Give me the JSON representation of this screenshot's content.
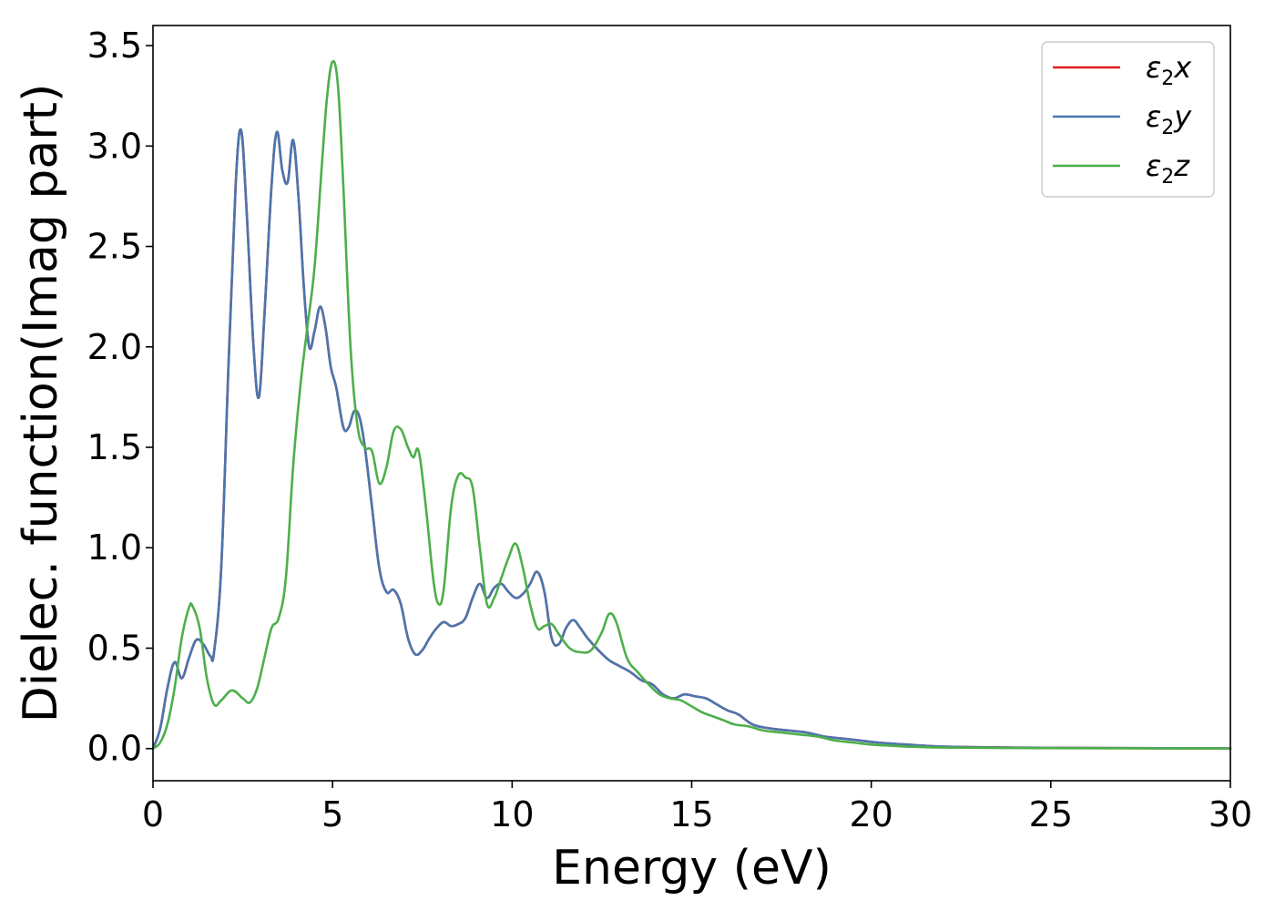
{
  "chart_data": {
    "type": "line",
    "xlabel": "Energy (eV)",
    "ylabel": "Dielec. function(Imag part)",
    "xlim": [
      0,
      30
    ],
    "ylim": [
      -0.16,
      3.6
    ],
    "x_ticks": [
      0,
      5,
      10,
      15,
      20,
      25,
      30
    ],
    "y_ticks": [
      0.0,
      0.5,
      1.0,
      1.5,
      2.0,
      2.5,
      3.0,
      3.5
    ],
    "x_tick_labels": [
      "0",
      "5",
      "10",
      "15",
      "20",
      "25",
      "30"
    ],
    "y_tick_labels": [
      "0.0",
      "0.5",
      "1.0",
      "1.5",
      "2.0",
      "2.5",
      "3.0",
      "3.5"
    ],
    "grid": false,
    "legend_position": "top-right",
    "series": [
      {
        "name": "ε₂x",
        "label_base": "ε",
        "label_sub": "2",
        "label_var": "x",
        "color": "#e41a1c",
        "x": [
          0,
          0.2,
          0.4,
          0.6,
          0.8,
          1.0,
          1.2,
          1.4,
          1.6,
          1.7,
          1.9,
          2.1,
          2.3,
          2.45,
          2.6,
          2.8,
          2.95,
          3.1,
          3.3,
          3.45,
          3.6,
          3.75,
          3.9,
          4.05,
          4.2,
          4.35,
          4.5,
          4.65,
          4.8,
          4.95,
          5.1,
          5.3,
          5.45,
          5.6,
          5.75,
          5.9,
          6.1,
          6.3,
          6.5,
          6.7,
          6.9,
          7.1,
          7.3,
          7.5,
          7.7,
          7.9,
          8.1,
          8.3,
          8.5,
          8.7,
          8.9,
          9.1,
          9.3,
          9.5,
          9.7,
          9.9,
          10.1,
          10.3,
          10.5,
          10.7,
          10.9,
          11.1,
          11.3,
          11.5,
          11.7,
          11.9,
          12.1,
          12.4,
          12.7,
          13.0,
          13.3,
          13.6,
          13.9,
          14.2,
          14.5,
          14.8,
          15.1,
          15.4,
          15.7,
          16.0,
          16.3,
          16.7,
          17.2,
          17.7,
          18.2,
          18.7,
          19.2,
          19.7,
          20.2,
          21.0,
          22.0,
          24.0,
          26.0,
          28.0,
          30.0
        ],
        "values": [
          0.0,
          0.1,
          0.3,
          0.43,
          0.35,
          0.45,
          0.54,
          0.52,
          0.46,
          0.48,
          0.9,
          1.9,
          2.8,
          3.08,
          2.7,
          2.0,
          1.75,
          2.15,
          2.8,
          3.07,
          2.88,
          2.82,
          3.03,
          2.75,
          2.3,
          2.0,
          2.08,
          2.2,
          2.1,
          1.9,
          1.8,
          1.6,
          1.6,
          1.68,
          1.65,
          1.5,
          1.2,
          0.9,
          0.78,
          0.79,
          0.72,
          0.55,
          0.47,
          0.49,
          0.55,
          0.6,
          0.63,
          0.61,
          0.62,
          0.65,
          0.75,
          0.82,
          0.75,
          0.8,
          0.82,
          0.78,
          0.75,
          0.77,
          0.82,
          0.88,
          0.78,
          0.55,
          0.52,
          0.6,
          0.64,
          0.6,
          0.55,
          0.49,
          0.44,
          0.41,
          0.38,
          0.34,
          0.32,
          0.27,
          0.25,
          0.27,
          0.26,
          0.25,
          0.22,
          0.19,
          0.17,
          0.12,
          0.1,
          0.09,
          0.08,
          0.06,
          0.05,
          0.04,
          0.03,
          0.02,
          0.01,
          0.005,
          0.003,
          0.002,
          0.001
        ]
      },
      {
        "name": "ε₂y",
        "label_base": "ε",
        "label_sub": "2",
        "label_var": "y",
        "color": "#4a76ae",
        "x": [
          0,
          0.2,
          0.4,
          0.6,
          0.8,
          1.0,
          1.2,
          1.4,
          1.6,
          1.7,
          1.9,
          2.1,
          2.3,
          2.45,
          2.6,
          2.8,
          2.95,
          3.1,
          3.3,
          3.45,
          3.6,
          3.75,
          3.9,
          4.05,
          4.2,
          4.35,
          4.5,
          4.65,
          4.8,
          4.95,
          5.1,
          5.3,
          5.45,
          5.6,
          5.75,
          5.9,
          6.1,
          6.3,
          6.5,
          6.7,
          6.9,
          7.1,
          7.3,
          7.5,
          7.7,
          7.9,
          8.1,
          8.3,
          8.5,
          8.7,
          8.9,
          9.1,
          9.3,
          9.5,
          9.7,
          9.9,
          10.1,
          10.3,
          10.5,
          10.7,
          10.9,
          11.1,
          11.3,
          11.5,
          11.7,
          11.9,
          12.1,
          12.4,
          12.7,
          13.0,
          13.3,
          13.6,
          13.9,
          14.2,
          14.5,
          14.8,
          15.1,
          15.4,
          15.7,
          16.0,
          16.3,
          16.7,
          17.2,
          17.7,
          18.2,
          18.7,
          19.2,
          19.7,
          20.2,
          21.0,
          22.0,
          24.0,
          26.0,
          28.0,
          30.0
        ],
        "values": [
          0.0,
          0.1,
          0.3,
          0.43,
          0.35,
          0.45,
          0.54,
          0.52,
          0.46,
          0.48,
          0.9,
          1.9,
          2.8,
          3.08,
          2.7,
          2.0,
          1.75,
          2.15,
          2.8,
          3.07,
          2.88,
          2.82,
          3.03,
          2.75,
          2.3,
          2.0,
          2.08,
          2.2,
          2.1,
          1.9,
          1.8,
          1.6,
          1.6,
          1.68,
          1.65,
          1.5,
          1.2,
          0.9,
          0.78,
          0.79,
          0.72,
          0.55,
          0.47,
          0.49,
          0.55,
          0.6,
          0.63,
          0.61,
          0.62,
          0.65,
          0.75,
          0.82,
          0.75,
          0.8,
          0.82,
          0.78,
          0.75,
          0.77,
          0.82,
          0.88,
          0.78,
          0.55,
          0.52,
          0.6,
          0.64,
          0.6,
          0.55,
          0.49,
          0.44,
          0.41,
          0.38,
          0.34,
          0.32,
          0.27,
          0.25,
          0.27,
          0.26,
          0.25,
          0.22,
          0.19,
          0.17,
          0.12,
          0.1,
          0.09,
          0.08,
          0.06,
          0.05,
          0.04,
          0.03,
          0.02,
          0.01,
          0.005,
          0.003,
          0.002,
          0.001
        ]
      },
      {
        "name": "ε₂z",
        "label_base": "ε",
        "label_sub": "2",
        "label_var": "z",
        "color": "#4daf4a",
        "x": [
          0,
          0.2,
          0.4,
          0.6,
          0.8,
          1.0,
          1.1,
          1.3,
          1.5,
          1.7,
          1.9,
          2.2,
          2.5,
          2.7,
          2.9,
          3.1,
          3.3,
          3.5,
          3.7,
          3.9,
          4.1,
          4.3,
          4.5,
          4.7,
          4.85,
          5.0,
          5.15,
          5.3,
          5.5,
          5.7,
          5.9,
          6.1,
          6.3,
          6.5,
          6.7,
          6.9,
          7.1,
          7.25,
          7.4,
          7.6,
          7.8,
          7.95,
          8.1,
          8.3,
          8.5,
          8.7,
          8.9,
          9.1,
          9.3,
          9.5,
          9.7,
          9.9,
          10.1,
          10.3,
          10.5,
          10.7,
          10.9,
          11.1,
          11.3,
          11.6,
          11.9,
          12.2,
          12.5,
          12.7,
          12.9,
          13.2,
          13.5,
          13.8,
          14.1,
          14.4,
          14.7,
          15.0,
          15.3,
          15.6,
          15.9,
          16.2,
          16.6,
          17.0,
          17.5,
          18.0,
          18.5,
          19.0,
          19.5,
          20.0,
          20.5,
          21.0,
          22.0,
          24.0,
          26.0,
          28.0,
          30.0
        ],
        "values": [
          0.0,
          0.03,
          0.12,
          0.3,
          0.55,
          0.7,
          0.71,
          0.6,
          0.35,
          0.22,
          0.24,
          0.29,
          0.25,
          0.23,
          0.3,
          0.45,
          0.6,
          0.65,
          0.85,
          1.4,
          1.8,
          2.1,
          2.4,
          2.9,
          3.25,
          3.42,
          3.3,
          2.8,
          2.0,
          1.6,
          1.5,
          1.48,
          1.32,
          1.4,
          1.58,
          1.59,
          1.5,
          1.45,
          1.48,
          1.2,
          0.85,
          0.72,
          0.8,
          1.2,
          1.36,
          1.35,
          1.3,
          1.0,
          0.72,
          0.75,
          0.85,
          0.95,
          1.02,
          0.9,
          0.72,
          0.6,
          0.61,
          0.62,
          0.57,
          0.5,
          0.48,
          0.49,
          0.58,
          0.67,
          0.63,
          0.45,
          0.38,
          0.32,
          0.27,
          0.25,
          0.24,
          0.21,
          0.18,
          0.16,
          0.14,
          0.12,
          0.11,
          0.09,
          0.08,
          0.07,
          0.06,
          0.04,
          0.03,
          0.02,
          0.015,
          0.01,
          0.005,
          0.003,
          0.002,
          0.001,
          0.001
        ]
      }
    ]
  }
}
